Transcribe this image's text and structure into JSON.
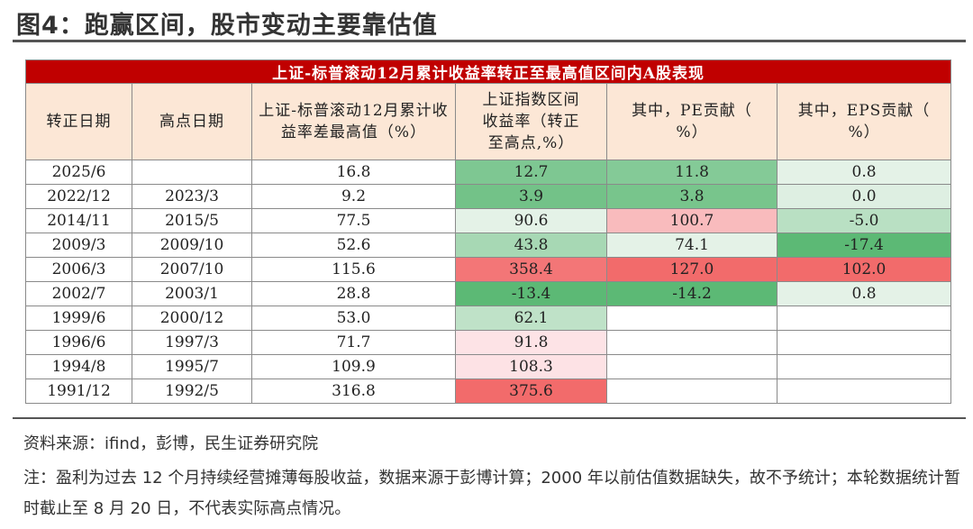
{
  "title": "图4：跑赢区间，股市变动主要靠估值",
  "table": {
    "banner": "上证-标普滚动12月累计收益率转正至最高值区间内A股表现",
    "headers": [
      "转正日期",
      "高点日期",
      "上证-标普滚动12月累计收益率差最高值（%）",
      "上证指数区间收益率（转正至高点,%）",
      "其中，PE贡献（%）",
      "其中，EPS贡献（%）"
    ],
    "rows": [
      [
        "2025/6",
        "",
        "16.8",
        "12.7",
        "11.8",
        "0.8"
      ],
      [
        "2022/12",
        "2023/3",
        "9.2",
        "3.9",
        "3.8",
        "0.0"
      ],
      [
        "2014/11",
        "2015/5",
        "77.5",
        "90.6",
        "100.7",
        "-5.0"
      ],
      [
        "2009/3",
        "2009/10",
        "52.6",
        "43.8",
        "74.1",
        "-17.4"
      ],
      [
        "2006/3",
        "2007/10",
        "115.6",
        "358.4",
        "127.0",
        "102.0"
      ],
      [
        "2002/7",
        "2003/1",
        "28.8",
        "-13.4",
        "-14.2",
        "0.8"
      ],
      [
        "1999/6",
        "2000/12",
        "53.0",
        "62.1",
        "",
        ""
      ],
      [
        "1996/6",
        "1997/3",
        "71.7",
        "91.8",
        "",
        ""
      ],
      [
        "1994/8",
        "1995/7",
        "109.9",
        "108.3",
        "",
        ""
      ],
      [
        "1991/12",
        "1992/5",
        "316.8",
        "375.6",
        "",
        ""
      ]
    ],
    "colors": {
      "banner": "#c00000",
      "header": "#fce7d6",
      "neg_strong": "#5cb975",
      "pos_strong": "#f26b6b"
    }
  },
  "source": "资料来源：ifind，彭博，民生证券研究院",
  "note": "注：盈利为过去 12 个月持续经营摊薄每股收益，数据来源于彭博计算；2000 年以前估值数据缺失，故不予统计；本轮数据统计暂时截止至 8 月 20 日，不代表实际高点情况。"
}
